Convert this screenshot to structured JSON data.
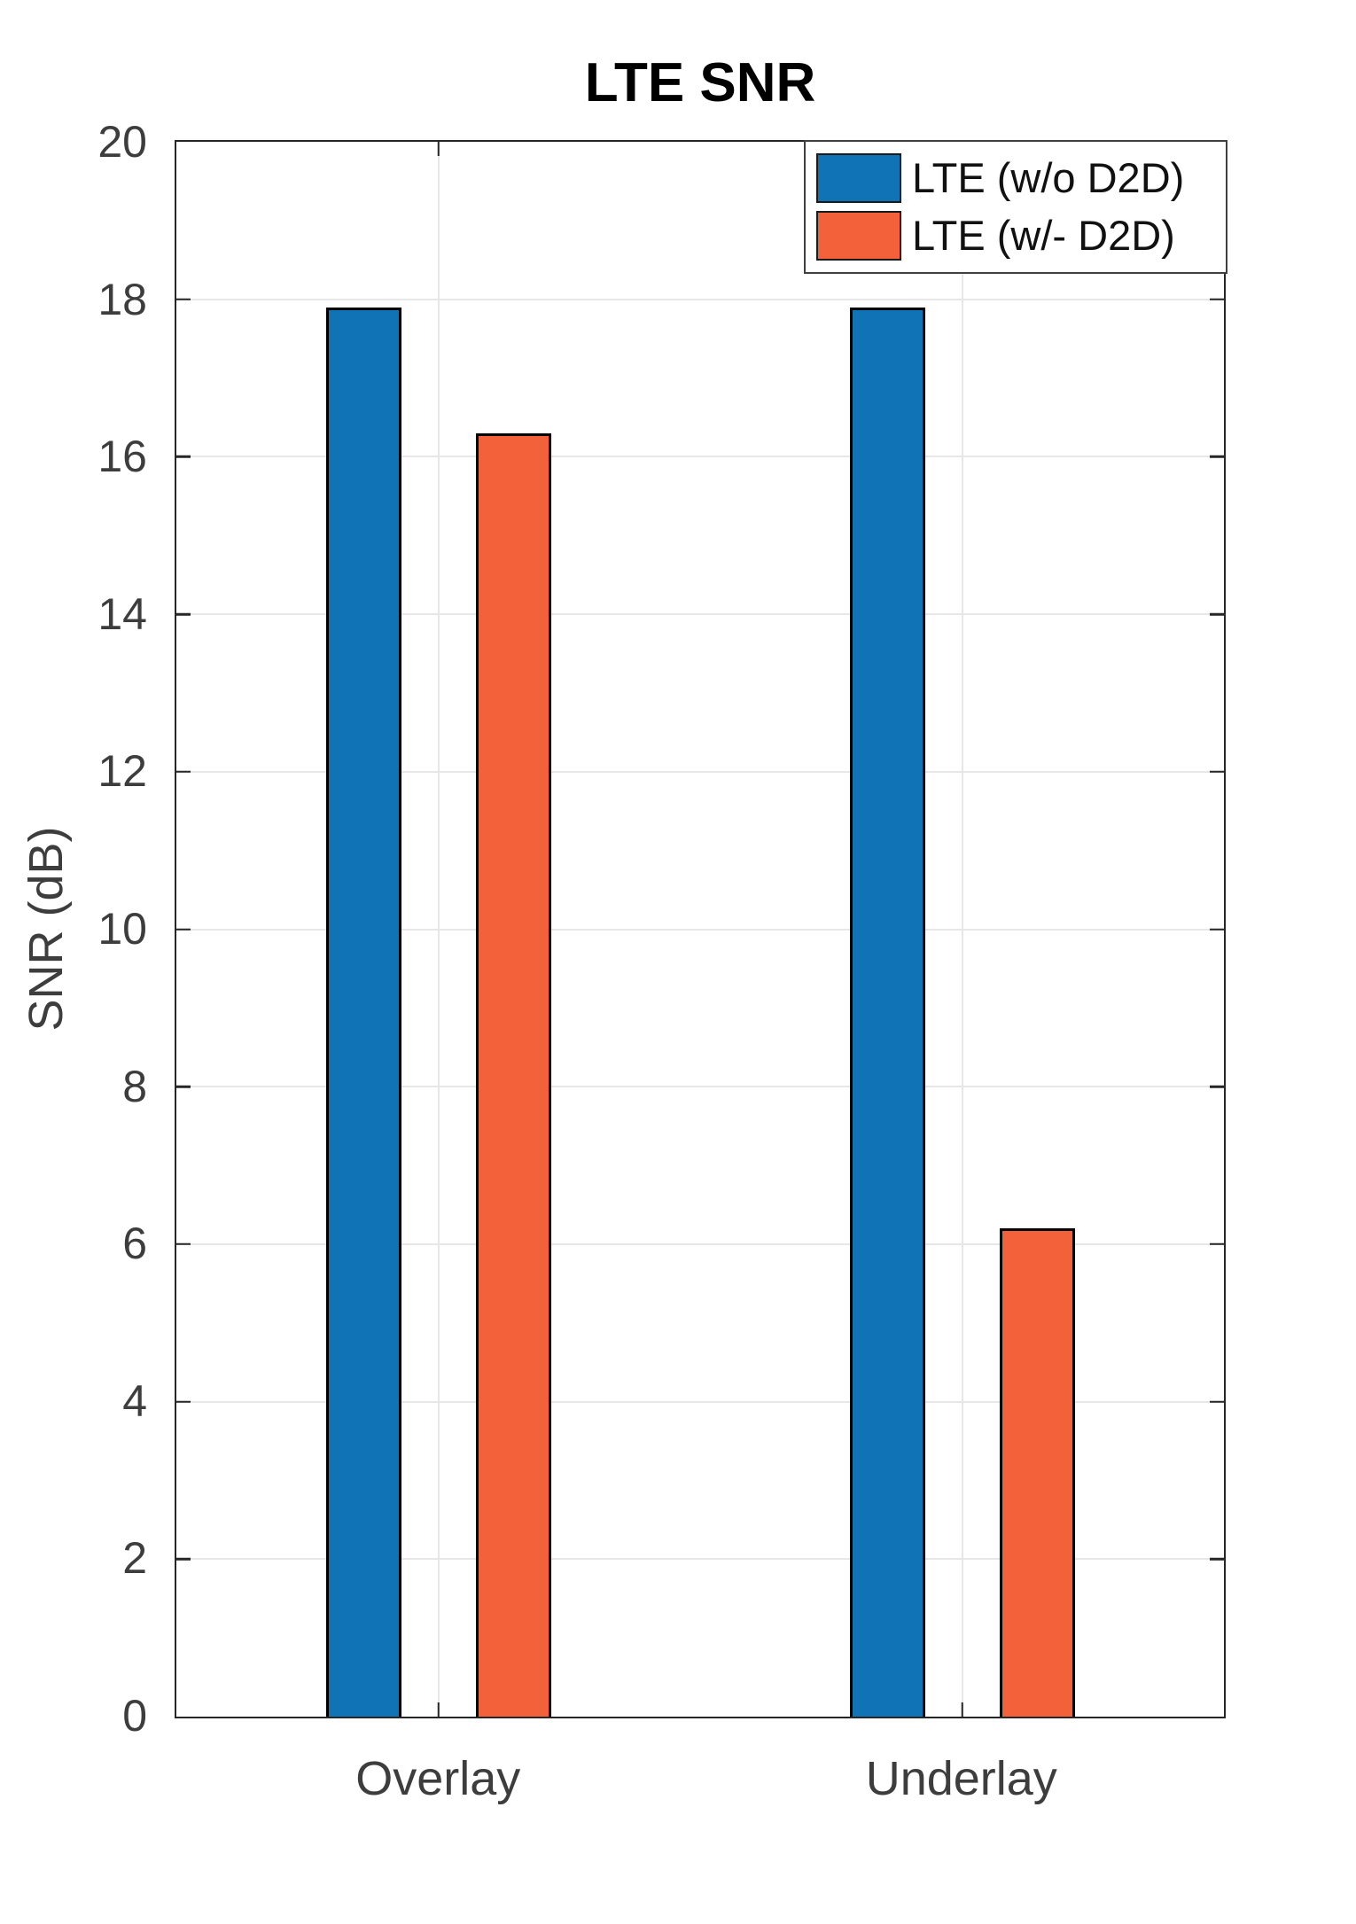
{
  "figure": {
    "title": "LTE SNR"
  },
  "chart_data": {
    "type": "bar",
    "title": "LTE SNR",
    "categories": [
      "Overlay",
      "Underlay"
    ],
    "series": [
      {
        "name": "LTE (w/o D2D)",
        "color": "#1073b6",
        "values": [
          17.9,
          17.9
        ]
      },
      {
        "name": "LTE (w/- D2D)",
        "color": "#f2613a",
        "values": [
          16.3,
          6.2
        ]
      }
    ],
    "xlabel": "",
    "ylabel": "SNR (dB)",
    "ylim": [
      0,
      20
    ],
    "yticks": [
      0,
      2,
      4,
      6,
      8,
      10,
      12,
      14,
      16,
      18,
      20
    ],
    "grid": true,
    "legend_position": "northeast-inside",
    "bar_edge_color": "#000000",
    "axis_color": "#262626",
    "grid_color": "#e7e7e7",
    "tick_direction": "in",
    "box": true
  }
}
